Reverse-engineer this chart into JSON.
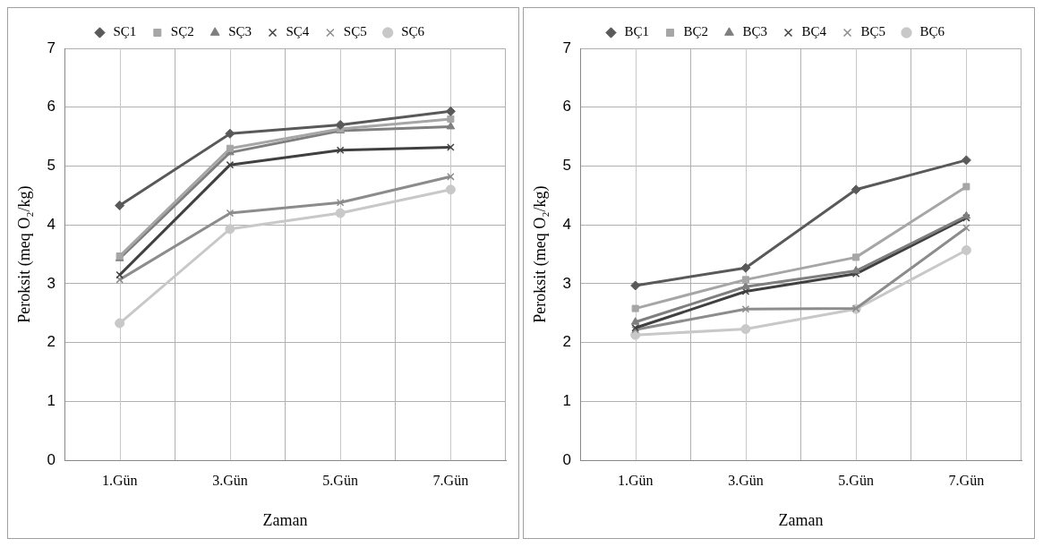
{
  "chart_data": [
    {
      "type": "line",
      "xlabel": "Zaman",
      "ylabel": "Peroksit (meq O₂/kg)",
      "categories": [
        "1.Gün",
        "3.Gün",
        "5.Gün",
        "7.Gün"
      ],
      "ylim": [
        0,
        7
      ],
      "yticks": [
        0,
        1,
        2,
        3,
        4,
        5,
        6,
        7
      ],
      "grid": true,
      "legend": "top",
      "line_style": "solid",
      "series": [
        {
          "name": "SÇ1",
          "color": "#595959",
          "marker": "diamond",
          "values": [
            4.33,
            5.55,
            5.7,
            5.93
          ]
        },
        {
          "name": "SÇ2",
          "color": "#a6a6a6",
          "marker": "square",
          "values": [
            3.47,
            5.3,
            5.63,
            5.8
          ]
        },
        {
          "name": "SÇ3",
          "color": "#7f7f7f",
          "marker": "triangle",
          "values": [
            3.43,
            5.23,
            5.6,
            5.67
          ]
        },
        {
          "name": "SÇ4",
          "color": "#404040",
          "marker": "cross",
          "values": [
            3.15,
            5.02,
            5.27,
            5.32
          ]
        },
        {
          "name": "SÇ5",
          "color": "#8c8c8c",
          "marker": "cross",
          "values": [
            3.07,
            4.2,
            4.38,
            4.82
          ]
        },
        {
          "name": "SÇ6",
          "color": "#c8c8c8",
          "marker": "circle",
          "values": [
            2.33,
            3.93,
            4.2,
            4.6
          ]
        }
      ]
    },
    {
      "type": "line",
      "xlabel": "Zaman",
      "ylabel": "Peroksit (meq O₂/kg)",
      "categories": [
        "1.Gün",
        "3.Gün",
        "5.Gün",
        "7.Gün"
      ],
      "ylim": [
        0,
        7
      ],
      "yticks": [
        0,
        1,
        2,
        3,
        4,
        5,
        6,
        7
      ],
      "grid": true,
      "legend": "top",
      "line_style": "solid",
      "series": [
        {
          "name": "BÇ1",
          "color": "#595959",
          "marker": "diamond",
          "values": [
            2.97,
            3.27,
            4.6,
            5.1
          ]
        },
        {
          "name": "BÇ2",
          "color": "#a6a6a6",
          "marker": "square",
          "values": [
            2.58,
            3.07,
            3.45,
            4.65
          ]
        },
        {
          "name": "BÇ3",
          "color": "#7f7f7f",
          "marker": "triangle",
          "values": [
            2.35,
            2.95,
            3.22,
            4.15
          ]
        },
        {
          "name": "BÇ4",
          "color": "#404040",
          "marker": "cross",
          "values": [
            2.25,
            2.87,
            3.17,
            4.12
          ]
        },
        {
          "name": "BÇ5",
          "color": "#8c8c8c",
          "marker": "cross",
          "values": [
            2.22,
            2.57,
            2.58,
            3.95
          ]
        },
        {
          "name": "BÇ6",
          "color": "#c8c8c8",
          "marker": "circle",
          "values": [
            2.13,
            2.23,
            2.57,
            3.57
          ]
        }
      ]
    }
  ]
}
